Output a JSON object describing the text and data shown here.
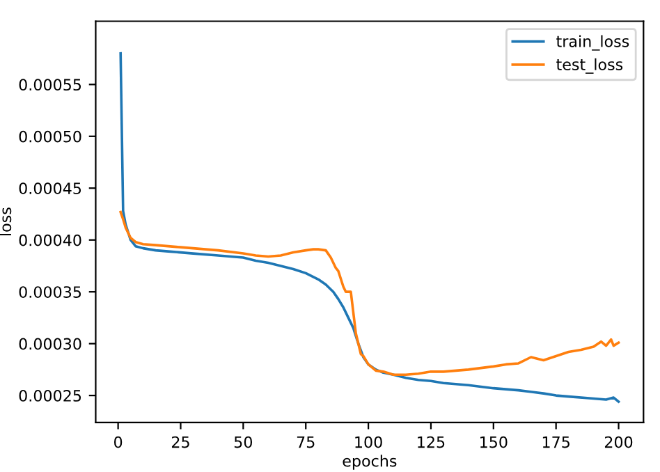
{
  "chart_data": {
    "type": "line",
    "xlabel": "epochs",
    "ylabel": "loss",
    "xlim": [
      -8.95,
      209.95
    ],
    "ylim": [
      0.000224,
      0.000611
    ],
    "xticks": [
      0,
      25,
      50,
      75,
      100,
      125,
      150,
      175,
      200
    ],
    "yticks": [
      {
        "value": 0.00025,
        "label": "0.00025"
      },
      {
        "value": 0.0003,
        "label": "0.00030"
      },
      {
        "value": 0.00035,
        "label": "0.00035"
      },
      {
        "value": 0.0004,
        "label": "0.00040"
      },
      {
        "value": 0.00045,
        "label": "0.00045"
      },
      {
        "value": 0.0005,
        "label": "0.00050"
      },
      {
        "value": 0.00055,
        "label": "0.00055"
      }
    ],
    "legend": "top right",
    "grid": false,
    "marker": "none",
    "line_style": "solid",
    "series": [
      {
        "name": "train_loss",
        "color": "#1f77b4",
        "x": [
          1,
          2,
          3,
          5,
          7,
          10,
          15,
          20,
          25,
          30,
          40,
          50,
          55,
          60,
          65,
          70,
          75,
          80,
          83,
          86,
          88,
          90,
          92,
          94,
          96,
          98,
          100,
          103,
          106,
          110,
          115,
          120,
          125,
          130,
          140,
          150,
          160,
          170,
          175,
          180,
          190,
          195,
          198,
          200
        ],
        "values": [
          0.00058,
          0.000428,
          0.000415,
          0.0004,
          0.000394,
          0.000392,
          0.00039,
          0.000389,
          0.000388,
          0.000387,
          0.000385,
          0.000383,
          0.00038,
          0.000378,
          0.000375,
          0.000372,
          0.000368,
          0.000362,
          0.000357,
          0.00035,
          0.000343,
          0.000335,
          0.000325,
          0.000315,
          0.0003,
          0.000287,
          0.00028,
          0.000275,
          0.000272,
          0.00027,
          0.000267,
          0.000265,
          0.000264,
          0.000262,
          0.00026,
          0.000257,
          0.000255,
          0.000252,
          0.00025,
          0.000249,
          0.000247,
          0.000246,
          0.000248,
          0.000244
        ]
      },
      {
        "name": "test_loss",
        "color": "#ff7f0e",
        "x": [
          1,
          2,
          3,
          5,
          7,
          10,
          15,
          20,
          25,
          30,
          40,
          50,
          55,
          60,
          65,
          70,
          75,
          78,
          80,
          83,
          85,
          87,
          88,
          90,
          91,
          93,
          95,
          97,
          98,
          100,
          103,
          106,
          110,
          115,
          120,
          125,
          130,
          140,
          150,
          155,
          160,
          165,
          170,
          175,
          180,
          185,
          190,
          193,
          195,
          197,
          198,
          200
        ],
        "values": [
          0.000427,
          0.00042,
          0.000412,
          0.000402,
          0.000398,
          0.000396,
          0.000395,
          0.000394,
          0.000393,
          0.000392,
          0.00039,
          0.000387,
          0.000385,
          0.000384,
          0.000385,
          0.000388,
          0.00039,
          0.000391,
          0.000391,
          0.00039,
          0.000383,
          0.000373,
          0.00037,
          0.000355,
          0.00035,
          0.00035,
          0.00031,
          0.00029,
          0.000288,
          0.00028,
          0.000274,
          0.000273,
          0.00027,
          0.00027,
          0.000271,
          0.000273,
          0.000273,
          0.000275,
          0.000278,
          0.00028,
          0.000281,
          0.000287,
          0.000284,
          0.000288,
          0.000292,
          0.000294,
          0.000297,
          0.000302,
          0.000298,
          0.000304,
          0.000298,
          0.000301
        ]
      }
    ]
  }
}
